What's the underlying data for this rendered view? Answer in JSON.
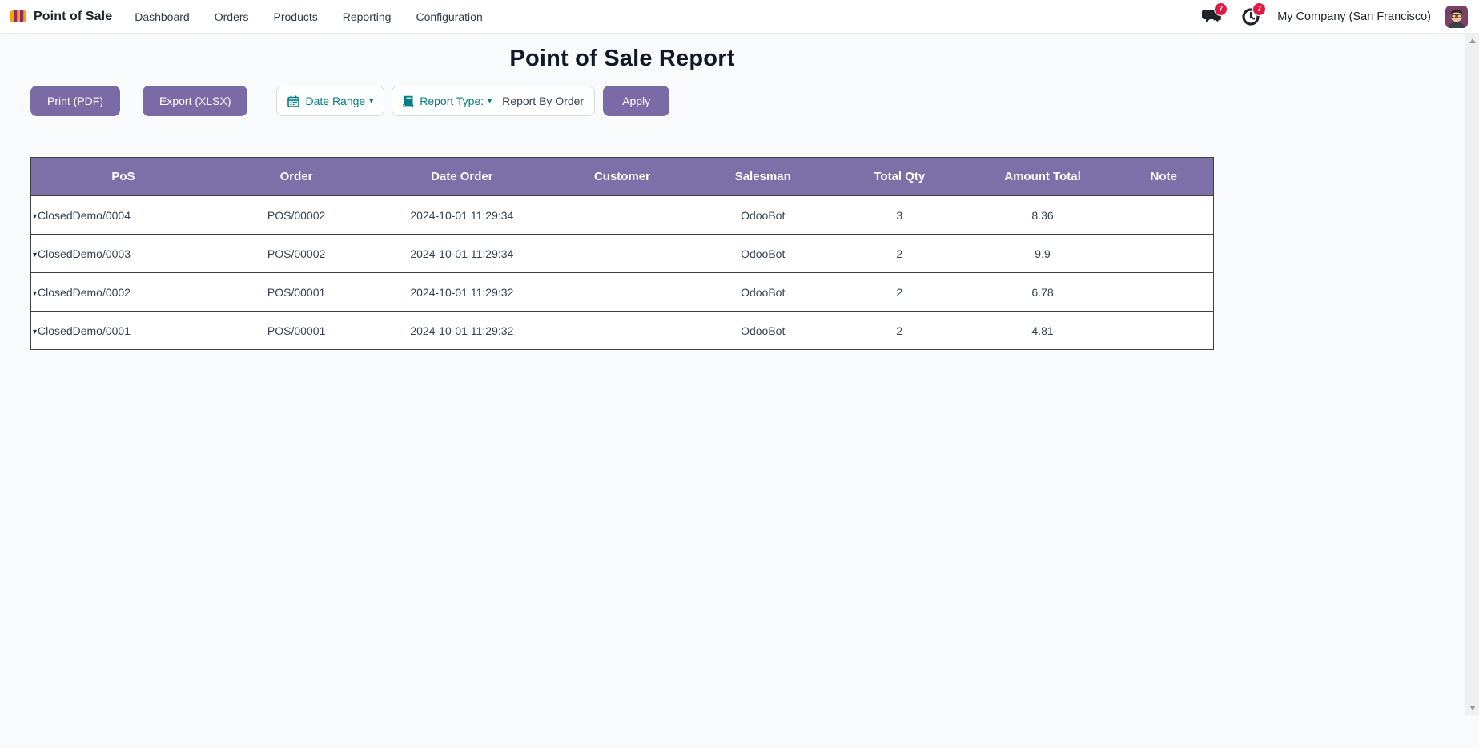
{
  "navbar": {
    "app_name": "Point of Sale",
    "menu_items": [
      "Dashboard",
      "Orders",
      "Products",
      "Reporting",
      "Configuration"
    ],
    "messages_badge": "7",
    "activities_badge": "7",
    "company": "My Company (San Francisco)"
  },
  "page": {
    "title": "Point of Sale Report"
  },
  "toolbar": {
    "print_label": "Print (PDF)",
    "export_label": "Export (XLSX)",
    "date_range_label": "Date Range",
    "date_range_caret": "▾",
    "report_type_label": "Report Type:",
    "report_type_caret": "▾",
    "report_type_value": "Report By Order",
    "apply_label": "Apply"
  },
  "table": {
    "headers": [
      "PoS",
      "Order",
      "Date Order",
      "Customer",
      "Salesman",
      "Total Qty",
      "Amount Total",
      "Note"
    ],
    "expand_caret": "▾",
    "rows": [
      {
        "pos": "ClosedDemo/0004",
        "order": "POS/00002",
        "date_order": "2024-10-01 11:29:34",
        "customer": "",
        "salesman": "OdooBot",
        "total_qty": "3",
        "amount_total": "8.36",
        "note": ""
      },
      {
        "pos": "ClosedDemo/0003",
        "order": "POS/00002",
        "date_order": "2024-10-01 11:29:34",
        "customer": "",
        "salesman": "OdooBot",
        "total_qty": "2",
        "amount_total": "9.9",
        "note": ""
      },
      {
        "pos": "ClosedDemo/0002",
        "order": "POS/00001",
        "date_order": "2024-10-01 11:29:32",
        "customer": "",
        "salesman": "OdooBot",
        "total_qty": "2",
        "amount_total": "6.78",
        "note": ""
      },
      {
        "pos": "ClosedDemo/0001",
        "order": "POS/00001",
        "date_order": "2024-10-01 11:29:32",
        "customer": "",
        "salesman": "OdooBot",
        "total_qty": "2",
        "amount_total": "4.81",
        "note": ""
      }
    ]
  },
  "colors": {
    "primary_purple": "#7a6aa5",
    "header_purple": "#7d6fa8",
    "teal": "#017e84",
    "badge_red": "#e4183f",
    "title_text": "#111827",
    "table_border": "#3f3f3f",
    "page_bg": "#f9fafb"
  }
}
